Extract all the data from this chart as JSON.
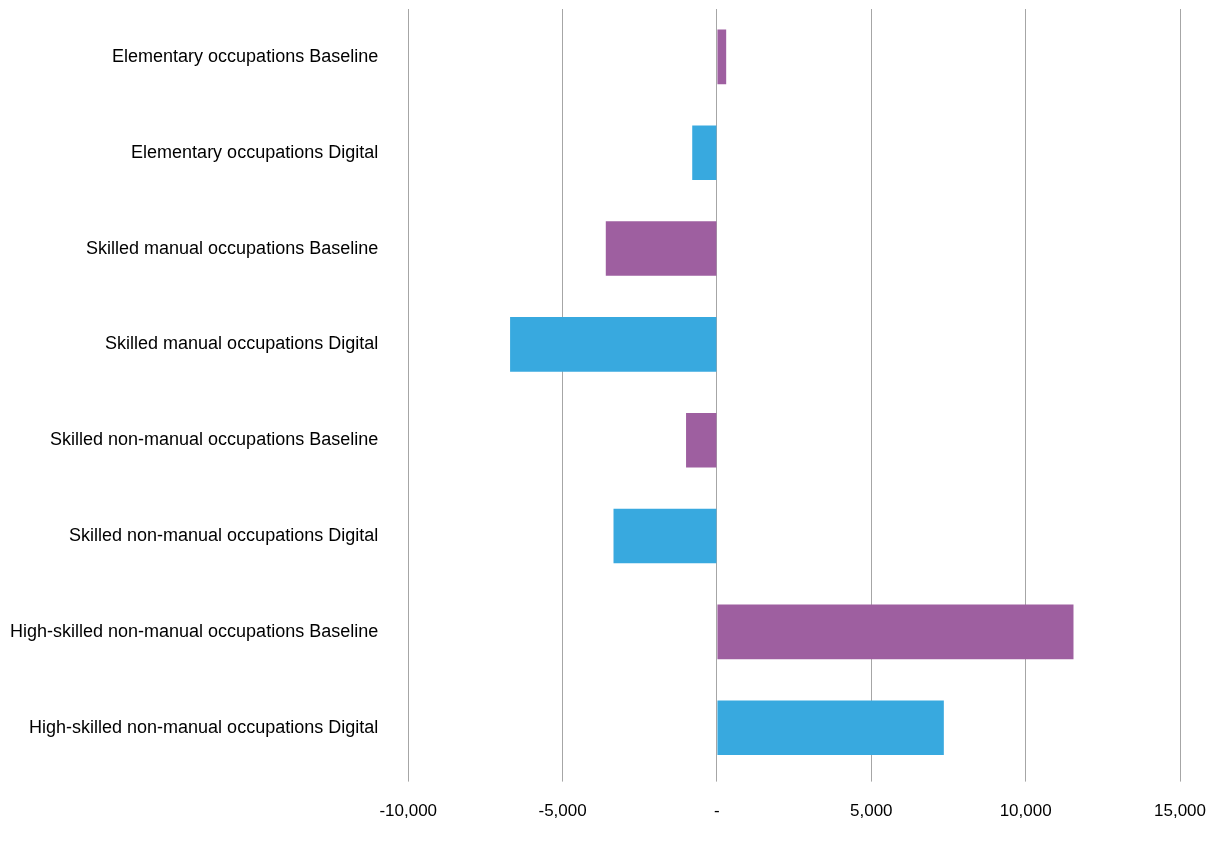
{
  "chart_data": {
    "type": "bar",
    "orientation": "horizontal",
    "categories": [
      "Elementary occupations Baseline",
      "Elementary occupations Digital",
      "Skilled manual occupations Baseline",
      "Skilled manual occupations Digital",
      "Skilled non-manual occupations Baseline",
      "Skilled non-manual occupations Digital",
      "High-skilled non-manual occupations Baseline",
      "High-skilled non-manual occupations Digital"
    ],
    "values": [
      300,
      -800,
      -3600,
      -6700,
      -1000,
      -3350,
      11550,
      7350
    ],
    "colors": [
      "#9e5fa0",
      "#38a9df",
      "#9e5fa0",
      "#38a9df",
      "#9e5fa0",
      "#38a9df",
      "#9e5fa0",
      "#38a9df"
    ],
    "xlim": [
      -10000,
      15000
    ],
    "xticks": [
      {
        "value": -10000,
        "label": "-10,000"
      },
      {
        "value": -5000,
        "label": "-5,000"
      },
      {
        "value": 0,
        "label": "-"
      },
      {
        "value": 5000,
        "label": "5,000"
      },
      {
        "value": 10000,
        "label": "10,000"
      },
      {
        "value": 15000,
        "label": "15,000"
      }
    ],
    "grid": "x"
  }
}
